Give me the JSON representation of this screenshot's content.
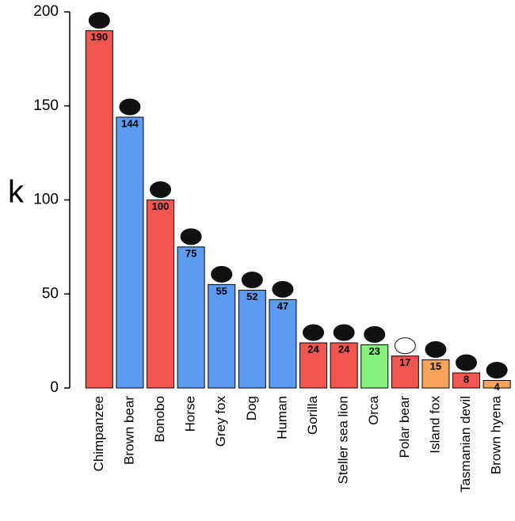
{
  "chart_data": {
    "type": "bar",
    "ylabel": "k",
    "categories": [
      "Chimpanzee",
      "Brown bear",
      "Bonobo",
      "Horse",
      "Grey fox",
      "Dog",
      "Human",
      "Gorilla",
      "Steller sea lion",
      "Orca",
      "Polar bear",
      "Island fox",
      "Tasmanian devil",
      "Brown hyena"
    ],
    "values": [
      190,
      144,
      100,
      75,
      55,
      52,
      47,
      24,
      24,
      23,
      17,
      15,
      8,
      4
    ],
    "colors": [
      "#f2564e",
      "#5b9cf2",
      "#f2564e",
      "#5b9cf2",
      "#5b9cf2",
      "#5b9cf2",
      "#5b9cf2",
      "#f2564e",
      "#f2564e",
      "#86f07c",
      "#f2564e",
      "#f9a35a",
      "#f2564e",
      "#f9a35a"
    ],
    "ylim": [
      0,
      200
    ],
    "yticks": [
      0,
      50,
      100,
      150,
      200
    ],
    "grid": false
  }
}
